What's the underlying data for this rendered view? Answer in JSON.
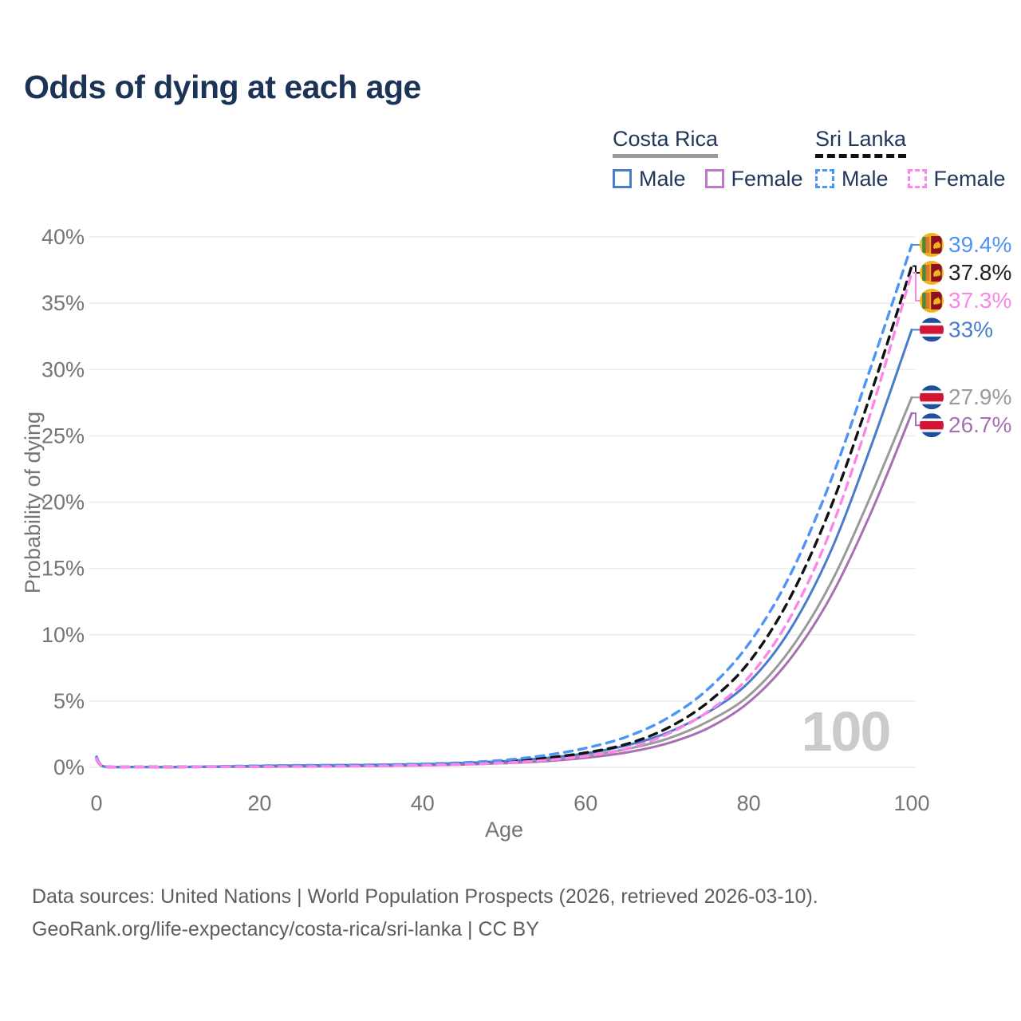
{
  "title": "Odds of dying at each age",
  "legend": {
    "groups": [
      {
        "name": "Costa Rica",
        "line_style": "solid",
        "underline_color": "#9a9a9a",
        "items": [
          {
            "label": "Male",
            "color": "#4a7dc9"
          },
          {
            "label": "Female",
            "color": "#b77fc1"
          }
        ]
      },
      {
        "name": "Sri Lanka",
        "line_style": "dashed",
        "underline_color": "#111111",
        "items": [
          {
            "label": "Male",
            "color": "#4d94f7"
          },
          {
            "label": "Female",
            "color": "#fb86e8"
          }
        ]
      }
    ]
  },
  "chart_data": {
    "type": "line",
    "title": "Odds of dying at each age",
    "xlabel": "Age",
    "ylabel": "Probability of dying",
    "xlim": [
      0,
      100
    ],
    "ylim": [
      0,
      40
    ],
    "x_ticks": [
      0,
      20,
      40,
      60,
      80,
      100
    ],
    "y_ticks": [
      {
        "value": 0,
        "label": "0%"
      },
      {
        "value": 5,
        "label": "5%"
      },
      {
        "value": 10,
        "label": "10%"
      },
      {
        "value": 15,
        "label": "15%"
      },
      {
        "value": 20,
        "label": "20%"
      },
      {
        "value": 25,
        "label": "25%"
      },
      {
        "value": 30,
        "label": "30%"
      },
      {
        "value": 35,
        "label": "35%"
      },
      {
        "value": 40,
        "label": "40%"
      }
    ],
    "grid": true,
    "legend_position": "top-right",
    "watermark": "100",
    "x": [
      0,
      1,
      5,
      10,
      15,
      20,
      25,
      30,
      35,
      40,
      45,
      50,
      55,
      60,
      65,
      70,
      75,
      80,
      85,
      90,
      95,
      100
    ],
    "series": [
      {
        "name": "Costa Rica Both sexes",
        "country": "Costa Rica",
        "sex": "both",
        "color": "#9a9a9a",
        "dashed": false,
        "flag": "cr",
        "end_label": "27.9%",
        "end_value": 27.9,
        "values": [
          0.65,
          0.045,
          0.027,
          0.025,
          0.05,
          0.08,
          0.1,
          0.12,
          0.15,
          0.19,
          0.26,
          0.38,
          0.57,
          0.87,
          1.38,
          2.15,
          3.45,
          5.4,
          8.8,
          13.8,
          20.5,
          27.9
        ]
      },
      {
        "name": "Costa Rica Female",
        "country": "Costa Rica",
        "sex": "female",
        "color": "#a86fb5",
        "dashed": false,
        "flag": "cr",
        "end_label": "26.7%",
        "end_value": 26.7,
        "values": [
          0.55,
          0.04,
          0.022,
          0.02,
          0.035,
          0.05,
          0.065,
          0.085,
          0.11,
          0.15,
          0.21,
          0.31,
          0.46,
          0.72,
          1.12,
          1.8,
          2.95,
          4.9,
          8.1,
          12.8,
          19.2,
          26.7
        ]
      },
      {
        "name": "Costa Rica Male",
        "country": "Costa Rica",
        "sex": "male",
        "color": "#4a7dc9",
        "dashed": false,
        "flag": "cr",
        "end_label": "33%",
        "end_value": 33.0,
        "values": [
          0.75,
          0.05,
          0.03,
          0.03,
          0.06,
          0.11,
          0.14,
          0.16,
          0.19,
          0.24,
          0.33,
          0.47,
          0.7,
          1.05,
          1.65,
          2.6,
          4.15,
          6.4,
          10.3,
          16.2,
          24.2,
          33.0
        ]
      },
      {
        "name": "Sri Lanka Both sexes",
        "country": "Sri Lanka",
        "sex": "both",
        "color": "#111111",
        "dashed": true,
        "flag": "lk",
        "end_label": "37.8%",
        "end_value": 37.8,
        "values": [
          0.7,
          0.05,
          0.035,
          0.03,
          0.05,
          0.09,
          0.11,
          0.13,
          0.16,
          0.21,
          0.29,
          0.44,
          0.7,
          1.1,
          1.75,
          2.95,
          4.9,
          7.9,
          12.7,
          19.5,
          28.2,
          37.8
        ]
      },
      {
        "name": "Sri Lanka Male",
        "country": "Sri Lanka",
        "sex": "male",
        "color": "#4d94f7",
        "dashed": true,
        "flag": "lk",
        "end_label": "39.4%",
        "end_value": 39.4,
        "values": [
          0.8,
          0.06,
          0.04,
          0.04,
          0.07,
          0.12,
          0.15,
          0.17,
          0.2,
          0.26,
          0.36,
          0.55,
          0.9,
          1.45,
          2.3,
          3.7,
          5.9,
          9.3,
          14.4,
          21.5,
          30.2,
          39.4
        ]
      },
      {
        "name": "Sri Lanka Female",
        "country": "Sri Lanka",
        "sex": "female",
        "color": "#fb86e8",
        "dashed": true,
        "flag": "lk",
        "end_label": "37.3%",
        "end_value": 37.3,
        "values": [
          0.65,
          0.045,
          0.03,
          0.025,
          0.04,
          0.05,
          0.06,
          0.08,
          0.11,
          0.16,
          0.22,
          0.34,
          0.53,
          0.85,
          1.4,
          2.5,
          4.2,
          6.8,
          11.2,
          17.8,
          26.8,
          37.3
        ]
      }
    ],
    "end_label_order": [
      "39.4%",
      "37.8%",
      "37.3%",
      "33%",
      "27.9%",
      "26.7%"
    ]
  },
  "footer": {
    "line1": "Data sources: United Nations | World Population Prospects (2026, retrieved 2026-03-10).",
    "line2": "GeoRank.org/life-expectancy/costa-rica/sri-lanka | CC BY"
  }
}
